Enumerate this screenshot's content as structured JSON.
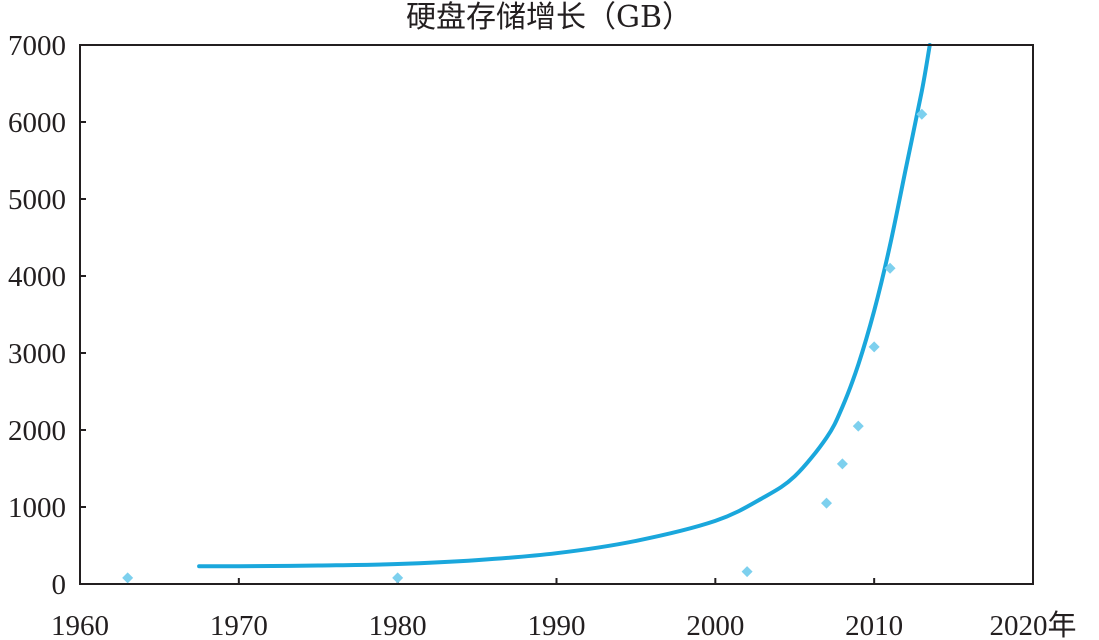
{
  "chart_data": {
    "type": "scatter",
    "title": "硬盘存储增长（GB）",
    "x_unit_suffix": "年",
    "xlim": [
      1960,
      2020
    ],
    "ylim": [
      0,
      7000
    ],
    "x_ticks": [
      1960,
      1970,
      1980,
      1990,
      2000,
      2010,
      2020
    ],
    "y_ticks": [
      0,
      1000,
      2000,
      3000,
      4000,
      5000,
      6000,
      7000
    ],
    "x_tick_labels": [
      "1960",
      "1970",
      "1980",
      "1990",
      "2000",
      "2010",
      "2020年"
    ],
    "y_tick_labels": [
      "0",
      "1000",
      "2000",
      "3000",
      "4000",
      "5000",
      "6000",
      "7000"
    ],
    "grid": false,
    "legend": "none",
    "series": [
      {
        "kind": "points",
        "color": "#7dd0ee",
        "marker": "diamond",
        "x": [
          1963,
          1980,
          2002,
          2007,
          2008,
          2009,
          2010,
          2011,
          2013
        ],
        "y": [
          80,
          80,
          160,
          1050,
          1560,
          2050,
          3080,
          4100,
          6100
        ]
      },
      {
        "kind": "curve",
        "color": "#1aa7dc",
        "x": [
          1967.5,
          1970,
          1975,
          1980,
          1985,
          1990,
          1995,
          2000,
          2003,
          2005,
          2007,
          2008,
          2009,
          2010,
          2011,
          2012,
          2013,
          2013.5
        ],
        "y": [
          230,
          230,
          240,
          260,
          310,
          400,
          560,
          820,
          1120,
          1400,
          1900,
          2300,
          2850,
          3550,
          4400,
          5400,
          6400,
          7000
        ]
      }
    ]
  }
}
